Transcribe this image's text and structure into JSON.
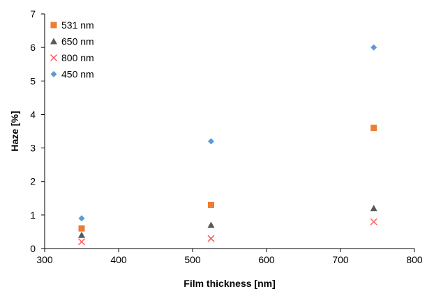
{
  "chart_data": {
    "type": "scatter",
    "title": "",
    "xlabel": "Film thickness [nm]",
    "ylabel": "Haze [%]",
    "xlim": [
      300,
      800
    ],
    "ylim": [
      0,
      7
    ],
    "xticks": [
      "300",
      "400",
      "500",
      "600",
      "700",
      "800"
    ],
    "yticks": [
      "0",
      "1",
      "2",
      "3",
      "4",
      "5",
      "6",
      "7"
    ],
    "grid": false,
    "legend_position": "top-left",
    "series": [
      {
        "name": "531 nm",
        "marker": "square",
        "color": "#ED7D31",
        "x": [
          350,
          525,
          745
        ],
        "y": [
          0.6,
          1.3,
          3.6
        ]
      },
      {
        "name": "650 nm",
        "marker": "triangle",
        "color": "#595959",
        "x": [
          350,
          525,
          745
        ],
        "y": [
          0.4,
          0.7,
          1.2
        ]
      },
      {
        "name": "800 nm",
        "marker": "cross",
        "color": "#FF5B5B",
        "x": [
          350,
          525,
          745
        ],
        "y": [
          0.2,
          0.3,
          0.8
        ]
      },
      {
        "name": "450 nm",
        "marker": "diamond",
        "color": "#5B9BD5",
        "x": [
          350,
          525,
          745
        ],
        "y": [
          0.9,
          3.2,
          6.0
        ]
      }
    ]
  }
}
